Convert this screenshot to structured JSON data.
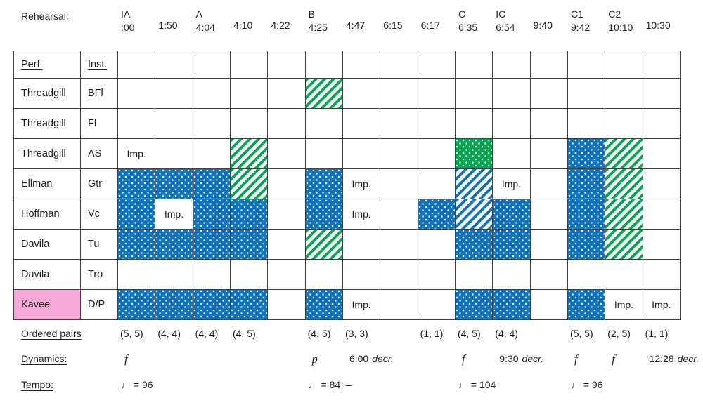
{
  "colors": {
    "blue": "#0F72BC",
    "green": "#00A551",
    "pink": "#F8A9D7",
    "grid_line": "#404040",
    "text": "#1F1F1F"
  },
  "chart_data": {
    "type": "table",
    "header_label": "Rehearsal:",
    "columns": [
      {
        "letter": "IA",
        "time": ":00"
      },
      {
        "letter": "",
        "time": "1:50"
      },
      {
        "letter": "A",
        "time": "4:04"
      },
      {
        "letter": "",
        "time": "4:10"
      },
      {
        "letter": "",
        "time": "4:22"
      },
      {
        "letter": "B",
        "time": "4:25"
      },
      {
        "letter": "",
        "time": "4:47"
      },
      {
        "letter": "",
        "time": "6:15"
      },
      {
        "letter": "",
        "time": "6:17"
      },
      {
        "letter": "C",
        "time": "6:35"
      },
      {
        "letter": "IC",
        "time": "6:54"
      },
      {
        "letter": "",
        "time": "9:40"
      },
      {
        "letter": "C1",
        "time": "9:42"
      },
      {
        "letter": "C2",
        "time": "10:10"
      },
      {
        "letter": "",
        "time": "10:30"
      }
    ],
    "perf_header": "Perf.",
    "inst_header": "Inst.",
    "imp_label": "Imp.",
    "rows": [
      {
        "performer": "Threadgill",
        "instrument": "BFl",
        "highlight": false,
        "cells": [
          "",
          "",
          "",
          "",
          "",
          "green-diag",
          "",
          "",
          "",
          "",
          "",
          "",
          "",
          "",
          ""
        ]
      },
      {
        "performer": "Threadgill",
        "instrument": "Fl",
        "highlight": false,
        "cells": [
          "",
          "",
          "",
          "",
          "",
          "",
          "",
          "",
          "",
          "",
          "",
          "",
          "",
          "",
          ""
        ]
      },
      {
        "performer": "Threadgill",
        "instrument": "AS",
        "highlight": false,
        "cells": [
          "imp",
          "",
          "",
          "green-diag",
          "",
          "",
          "",
          "",
          "",
          "green-dot",
          "",
          "",
          "blue-dot",
          "green-diag",
          ""
        ]
      },
      {
        "performer": "Ellman",
        "instrument": "Gtr",
        "highlight": false,
        "cells": [
          "blue-dot",
          "blue-dot",
          "blue-dot",
          "green-diag",
          "",
          "blue-dot",
          "imp",
          "",
          "",
          "blue-diag",
          "imp",
          "",
          "blue-dot",
          "green-diag",
          ""
        ]
      },
      {
        "performer": "Hoffman",
        "instrument": "Vc",
        "highlight": false,
        "cells": [
          "blue-dot",
          "imp",
          "blue-dot",
          "blue-dot",
          "",
          "blue-dot",
          "imp",
          "",
          "blue-dot",
          "blue-diag",
          "blue-dot",
          "",
          "blue-dot",
          "green-diag",
          ""
        ]
      },
      {
        "performer": "Davila",
        "instrument": "Tu",
        "highlight": false,
        "cells": [
          "blue-dot",
          "blue-dot",
          "blue-dot",
          "blue-dot",
          "",
          "green-diag",
          "",
          "",
          "",
          "blue-dot",
          "blue-dot",
          "",
          "blue-dot",
          "green-diag",
          ""
        ]
      },
      {
        "performer": "Davila",
        "instrument": "Tro",
        "highlight": false,
        "cells": [
          "",
          "",
          "",
          "",
          "",
          "",
          "",
          "",
          "",
          "",
          "",
          "",
          "",
          "",
          ""
        ]
      },
      {
        "performer": "Kavee",
        "instrument": "D/P",
        "highlight": true,
        "cells": [
          "blue-dot",
          "blue-dot",
          "blue-dot",
          "blue-dot",
          "",
          "blue-dot",
          "imp",
          "",
          "",
          "blue-dot",
          "blue-dot",
          "",
          "blue-dot",
          "imp",
          "imp"
        ]
      }
    ],
    "ordered_pairs_label": "Ordered pairs",
    "ordered_pairs": [
      "(5, 5)",
      "(4, 4)",
      "(4, 4)",
      "(4, 5)",
      "",
      "(4, 5)",
      "(3, 3)",
      "",
      "(1, 1)",
      "(4, 5)",
      "(4, 4)",
      "",
      "(5, 5)",
      "(2, 5)",
      "(1, 1)"
    ],
    "dynamics_label": "Dynamics:",
    "dynamics": [
      {
        "mark": "f"
      },
      null,
      null,
      null,
      null,
      {
        "mark": "p"
      },
      {
        "time": "6:00",
        "term": "decr."
      },
      null,
      null,
      {
        "mark": "f"
      },
      {
        "time": "9:30",
        "term": "decr."
      },
      null,
      {
        "mark": "f"
      },
      {
        "mark": "f"
      },
      {
        "time": "12:28",
        "term": "decr."
      }
    ],
    "tempo_label": "Tempo:",
    "tempo": [
      "♩ = 96",
      "",
      "",
      "",
      "",
      "♩ = 84",
      "–",
      "",
      "",
      "♩ = 104",
      "",
      "",
      "♩ = 96",
      "",
      ""
    ]
  }
}
